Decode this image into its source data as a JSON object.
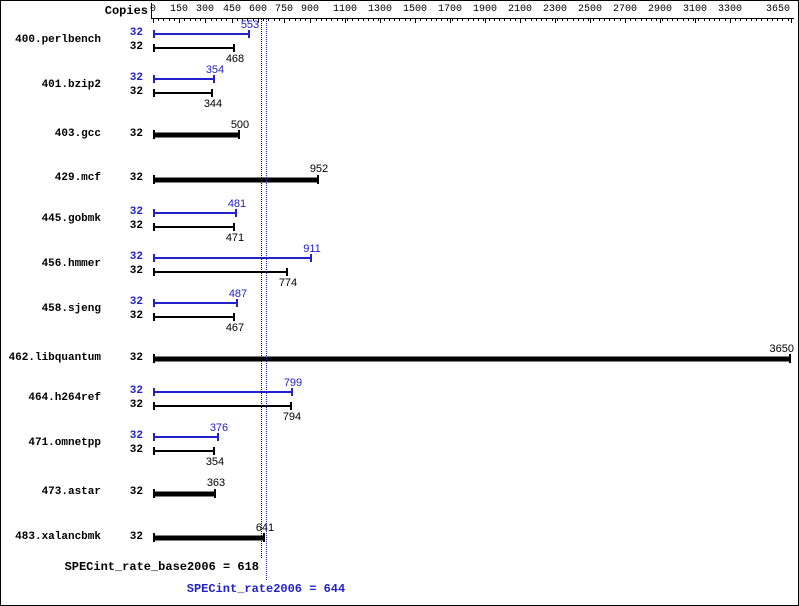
{
  "chart_data": {
    "type": "bar",
    "orientation": "horizontal",
    "copies_header": "Copies",
    "x_axis": {
      "max": 3650,
      "major_ticks": [
        0,
        150,
        300,
        450,
        600,
        750,
        900,
        1100,
        1300,
        1500,
        1700,
        1900,
        2100,
        2300,
        2500,
        2700,
        2900,
        3100,
        3300,
        3650
      ],
      "minor_tick_step": 30,
      "grid": false
    },
    "legend_note": "blue thin bar = peak result (value above), black thin bar = base result (value below), thick black bar = single/base-only result",
    "benchmarks": [
      {
        "name": "400.perlbench",
        "copies": 32,
        "peak": 553,
        "base": 468
      },
      {
        "name": "401.bzip2",
        "copies": 32,
        "peak": 354,
        "base": 344
      },
      {
        "name": "403.gcc",
        "copies": 32,
        "peak": null,
        "base": 500
      },
      {
        "name": "429.mcf",
        "copies": 32,
        "peak": null,
        "base": 952
      },
      {
        "name": "445.gobmk",
        "copies": 32,
        "peak": 481,
        "base": 471
      },
      {
        "name": "456.hmmer",
        "copies": 32,
        "peak": 911,
        "base": 774
      },
      {
        "name": "458.sjeng",
        "copies": 32,
        "peak": 487,
        "base": 467
      },
      {
        "name": "462.libquantum",
        "copies": 32,
        "peak": null,
        "base": 3650
      },
      {
        "name": "464.h264ref",
        "copies": 32,
        "peak": 799,
        "base": 794
      },
      {
        "name": "471.omnetpp",
        "copies": 32,
        "peak": 376,
        "base": 354
      },
      {
        "name": "473.astar",
        "copies": 32,
        "peak": null,
        "base": 363
      },
      {
        "name": "483.xalancbmk",
        "copies": 32,
        "peak": null,
        "base": 641
      }
    ],
    "summary": {
      "base_label": "SPECint_rate_base2006 = 618",
      "base_value": 618,
      "peak_label": "SPECint_rate2006 = 644",
      "peak_value": 644
    },
    "colors": {
      "peak": "#2222cc",
      "base": "#000000",
      "background": "#ffffff"
    }
  }
}
